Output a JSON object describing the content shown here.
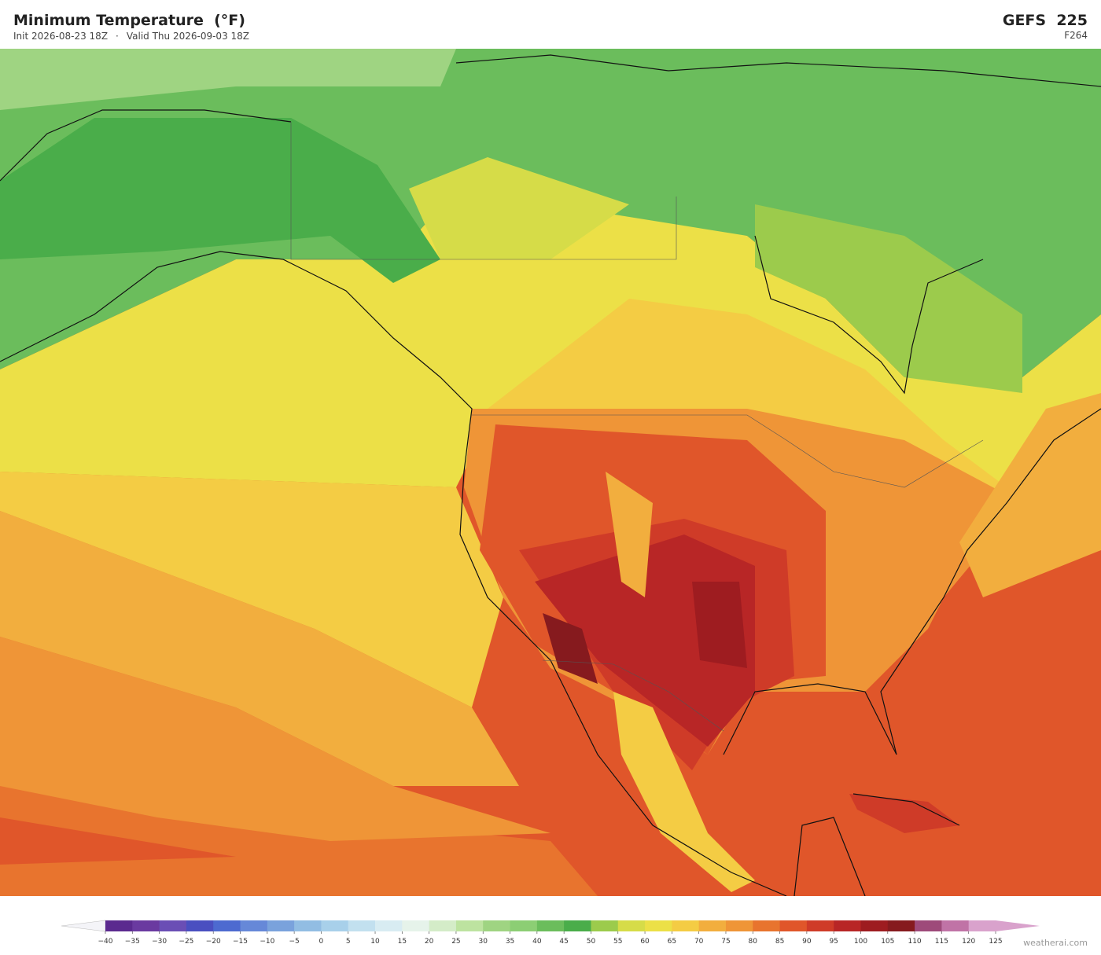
{
  "header": {
    "title": "Minimum Temperature  (°F)",
    "init": "Init 2026-08-23 18Z",
    "separator": "·",
    "valid": "Valid Thu 2026-09-03 18Z",
    "model": "GEFS  225",
    "step": "F264"
  },
  "colorbar": {
    "ticks": [
      {
        "value": -40,
        "label": "−40"
      },
      {
        "value": -35,
        "label": "−35"
      },
      {
        "value": -30,
        "label": "−30"
      },
      {
        "value": -25,
        "label": "−25"
      },
      {
        "value": -20,
        "label": "−20"
      },
      {
        "value": -15,
        "label": "−15"
      },
      {
        "value": -10,
        "label": "−10"
      },
      {
        "value": -5,
        "label": "−5"
      },
      0,
      5,
      10,
      15,
      20,
      25,
      30,
      35,
      40,
      45,
      50,
      55,
      60,
      65,
      70,
      75,
      80,
      85,
      90,
      95,
      100,
      105,
      110,
      115,
      120,
      125
    ],
    "colors": [
      "#5b2a8f",
      "#6a3aa0",
      "#6a4eb5",
      "#4a4fc0",
      "#4d6ad0",
      "#6688d8",
      "#7aa2dc",
      "#92bde3",
      "#a8d0ea",
      "#c2e0ef",
      "#d8ecf2",
      "#e6f3ea",
      "#d4ecc8",
      "#bde3a0",
      "#9fd482",
      "#8cce74",
      "#6bbd5c",
      "#4aad4a",
      "#9ccb4c",
      "#d6dc48",
      "#ece047",
      "#f4cc44",
      "#f2ae3e",
      "#ef9537",
      "#e8742e",
      "#e0562a",
      "#cf3b28",
      "#b82626",
      "#9e1c20",
      "#861a1e",
      "#9e4a7a",
      "#c073a6",
      "#d9a2cc"
    ]
  },
  "footer": {
    "credit": "weatherai.com"
  }
}
